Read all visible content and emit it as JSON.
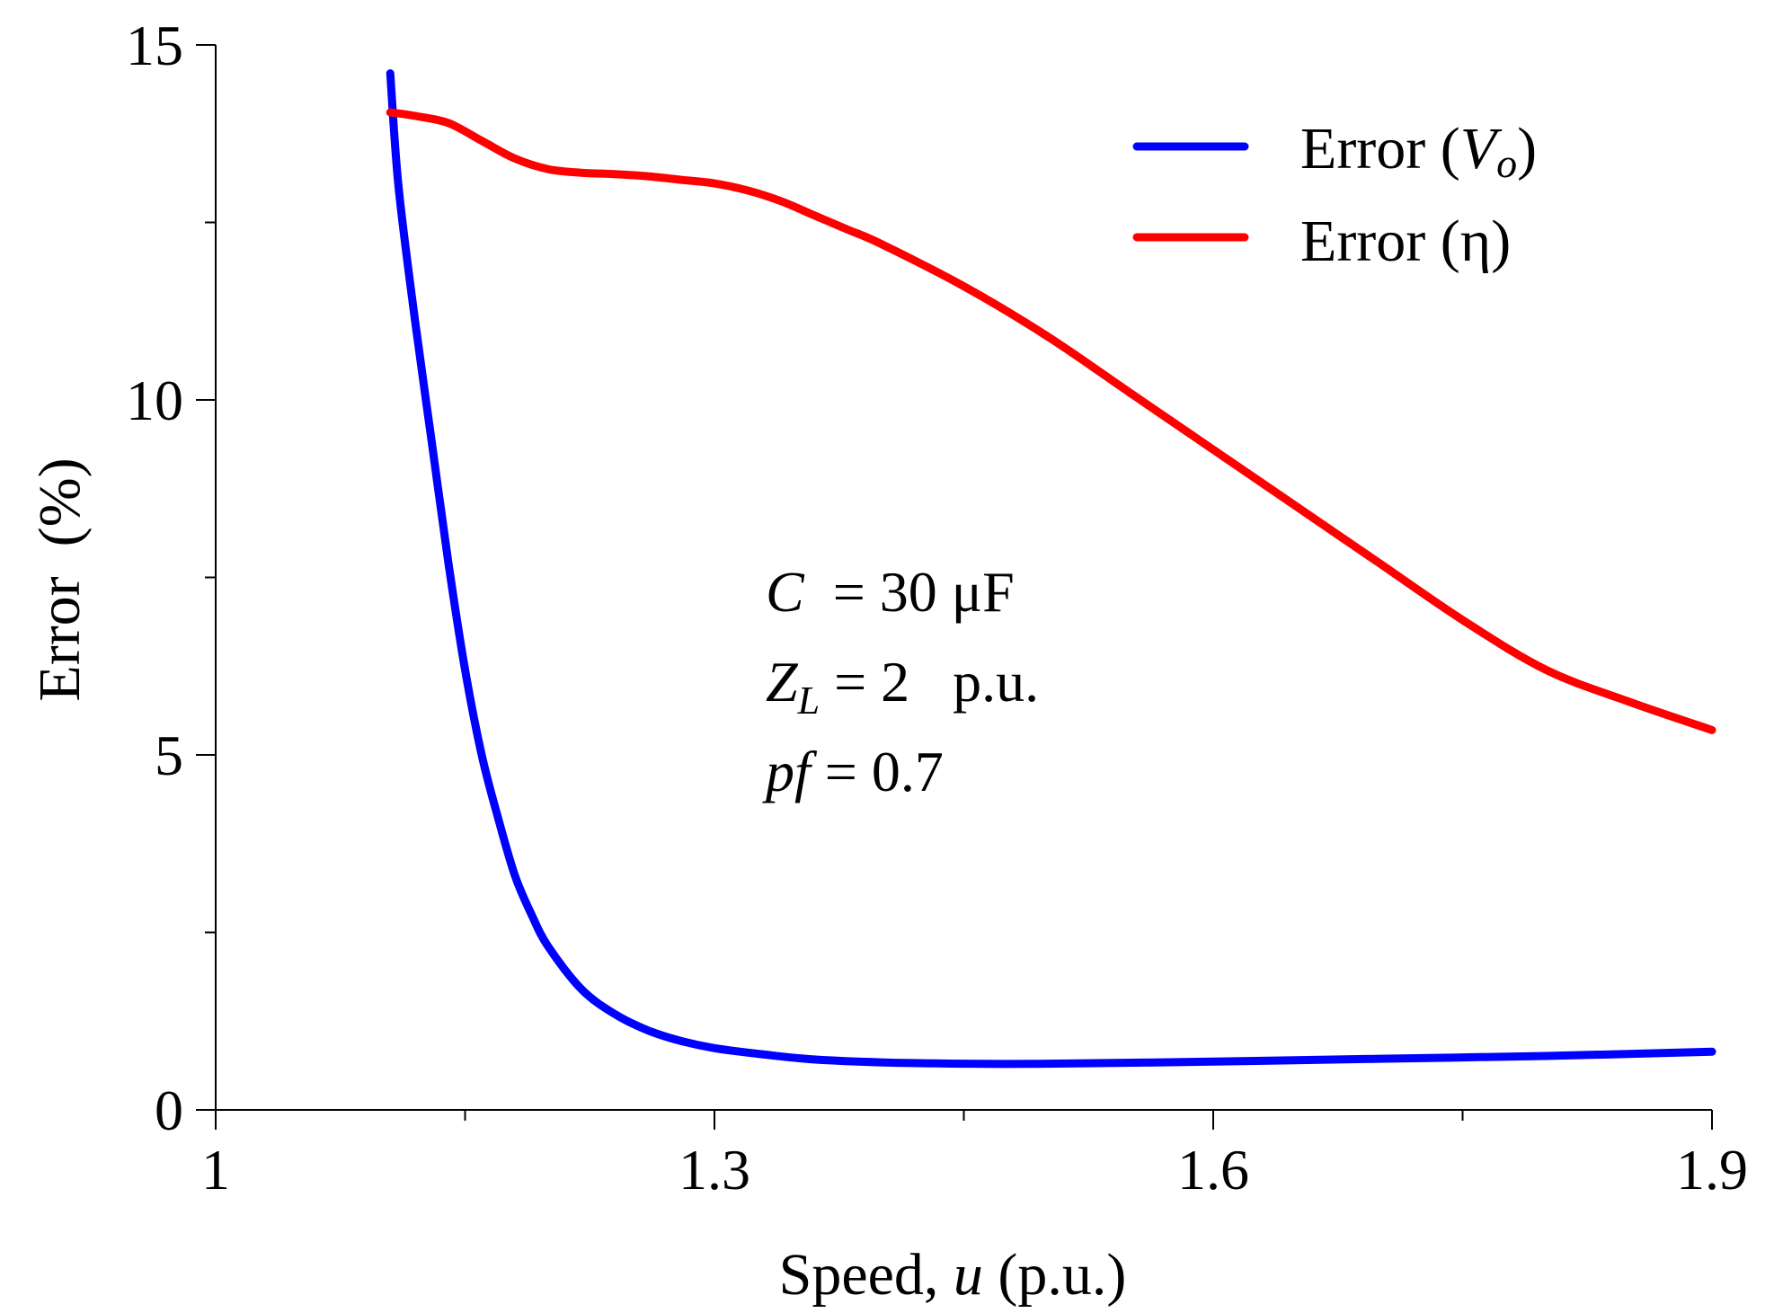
{
  "chart_data": {
    "type": "line",
    "xlabel": "Speed,",
    "xlabel_var": "u",
    "xlabel_unit": "(p.u.)",
    "ylabel": "Error  (%)",
    "xlim": [
      1,
      1.9
    ],
    "ylim": [
      0,
      15
    ],
    "xticks": [
      1,
      1.3,
      1.6,
      1.9
    ],
    "xtick_labels": [
      "1",
      "1.3",
      "1.6",
      "1.9"
    ],
    "xminor_ticks": [
      1.15,
      1.45,
      1.75
    ],
    "yticks": [
      0,
      5,
      10,
      15
    ],
    "ytick_labels": [
      "0",
      "5",
      "10",
      "15"
    ],
    "yminor_ticks": [
      2.5,
      7.5,
      12.5
    ],
    "grid": false,
    "legend_position": "top-right",
    "series": [
      {
        "name": "Error (Vo)",
        "name_prefix": "Error (",
        "name_var": "V",
        "name_sub": "o",
        "name_suffix": ")",
        "color": "#0000ff",
        "x": [
          1.105,
          1.11,
          1.12,
          1.13,
          1.14,
          1.15,
          1.16,
          1.17,
          1.18,
          1.19,
          1.2,
          1.22,
          1.24,
          1.26,
          1.28,
          1.3,
          1.33,
          1.36,
          1.4,
          1.45,
          1.5,
          1.6,
          1.7,
          1.8,
          1.9
        ],
        "y": [
          14.6,
          13.0,
          11.1,
          9.4,
          7.7,
          6.2,
          5.0,
          4.1,
          3.3,
          2.75,
          2.3,
          1.7,
          1.35,
          1.12,
          0.97,
          0.87,
          0.78,
          0.71,
          0.67,
          0.65,
          0.65,
          0.68,
          0.72,
          0.76,
          0.82
        ]
      },
      {
        "name": "Error (η)",
        "color": "#ff0000",
        "x": [
          1.105,
          1.12,
          1.14,
          1.16,
          1.18,
          1.2,
          1.22,
          1.24,
          1.26,
          1.28,
          1.3,
          1.32,
          1.34,
          1.36,
          1.38,
          1.4,
          1.45,
          1.5,
          1.55,
          1.6,
          1.65,
          1.7,
          1.75,
          1.8,
          1.85,
          1.9
        ],
        "y": [
          14.05,
          14.0,
          13.9,
          13.65,
          13.4,
          13.25,
          13.2,
          13.18,
          13.15,
          13.1,
          13.05,
          12.95,
          12.8,
          12.6,
          12.4,
          12.2,
          11.6,
          10.9,
          10.1,
          9.3,
          8.5,
          7.7,
          6.9,
          6.2,
          5.75,
          5.35
        ]
      }
    ],
    "annotations": [
      {
        "var": "C",
        "sub": "",
        "text": "  = 30 μF"
      },
      {
        "var": "Z",
        "sub": "L",
        "text": " = 2   p.u."
      },
      {
        "var": "pf",
        "sub": "",
        "text": " = 0.7"
      }
    ]
  }
}
